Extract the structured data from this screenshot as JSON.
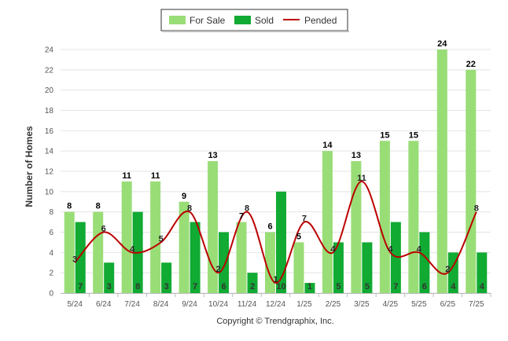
{
  "chart_data": {
    "type": "bar",
    "categories": [
      "5/24",
      "6/24",
      "7/24",
      "8/24",
      "9/24",
      "10/24",
      "11/24",
      "12/24",
      "1/25",
      "2/25",
      "3/25",
      "4/25",
      "5/25",
      "6/25",
      "7/25"
    ],
    "series": [
      {
        "name": "For Sale",
        "kind": "bar",
        "color": "#99dd77",
        "values": [
          8,
          8,
          11,
          11,
          9,
          13,
          7,
          6,
          5,
          14,
          13,
          15,
          15,
          24,
          22
        ]
      },
      {
        "name": "Sold",
        "kind": "bar",
        "color": "#11aa33",
        "values": [
          7,
          3,
          8,
          3,
          7,
          6,
          2,
          10,
          1,
          5,
          5,
          7,
          6,
          4,
          4
        ]
      },
      {
        "name": "Pended",
        "kind": "line",
        "color": "#bb0000",
        "values": [
          3,
          6,
          4,
          5,
          8,
          2,
          8,
          1,
          7,
          4,
          11,
          4,
          4,
          2,
          8
        ]
      }
    ],
    "ylabel": "Number of Homes",
    "xlabel": "",
    "ylim": [
      0,
      24
    ],
    "yticks": [
      0,
      2,
      4,
      6,
      8,
      10,
      12,
      14,
      16,
      18,
      20,
      22,
      24
    ],
    "grid": true,
    "legend_position": "top-center"
  },
  "credit": "Copyright © Trendgraphix, Inc."
}
